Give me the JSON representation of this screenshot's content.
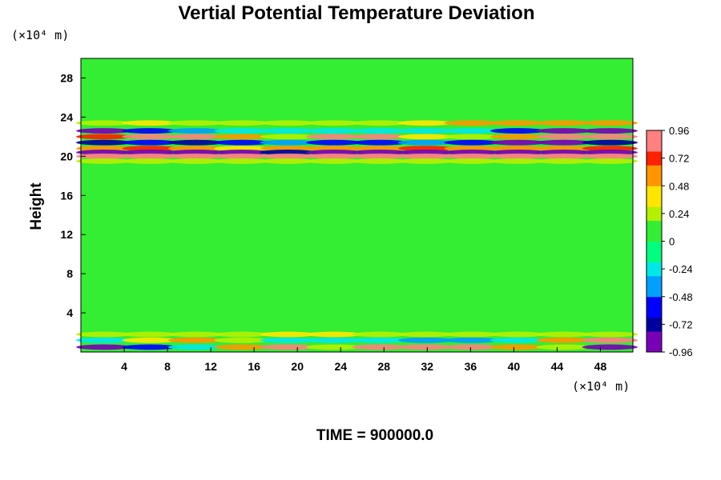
{
  "chart_data": {
    "type": "heatmap",
    "title": "Vertial Potential Temperature Deviation",
    "ylabel": "Height",
    "xlabel": "",
    "x_unit": "(×10⁴ m)",
    "y_unit": "(×10⁴ m)",
    "xlim": [
      0,
      51
    ],
    "ylim": [
      0,
      30
    ],
    "x_ticks": [
      "4",
      "8",
      "12",
      "16",
      "20",
      "24",
      "28",
      "32",
      "36",
      "40",
      "44",
      "48"
    ],
    "y_ticks": [
      "4",
      "8",
      "12",
      "16",
      "20",
      "24",
      "28"
    ],
    "grid": false,
    "background_value": 0,
    "colorbar": {
      "range": [
        -0.96,
        0.96
      ],
      "step": 0.06,
      "tick_labels": [
        "0.96",
        "0.72",
        "0.48",
        "0.24",
        "0",
        "-0.24",
        "-0.48",
        "-0.72",
        "-0.96"
      ],
      "tick_values": [
        0.96,
        0.72,
        0.48,
        0.24,
        0,
        -0.24,
        -0.48,
        -0.72,
        -0.96
      ],
      "colors": [
        "#7a00b8",
        "#0000a0",
        "#0000ff",
        "#00a0ff",
        "#00e8e8",
        "#00ff80",
        "#33ee33",
        "#b4f000",
        "#ffe600",
        "#ff9600",
        "#ff2000",
        "#ff8080"
      ]
    },
    "bands": [
      {
        "y": 23.4,
        "x_start": 0,
        "x_end": 51,
        "amplitude": [
          0.3,
          0.4,
          0.3,
          0.3,
          0.2,
          0.2,
          0.3,
          0.4,
          0.5,
          0.6,
          0.6,
          0.5
        ]
      },
      {
        "y": 22.6,
        "x_start": 0,
        "x_end": 51,
        "amplitude": [
          -0.8,
          -0.6,
          -0.4,
          -0.3,
          -0.3,
          -0.2,
          -0.2,
          -0.2,
          -0.3,
          -0.5,
          -0.8,
          -0.9
        ]
      },
      {
        "y": 22.0,
        "x_start": 0,
        "x_end": 51,
        "amplitude": [
          0.7,
          0.8,
          0.9,
          0.5,
          0.3,
          0.9,
          0.9,
          0.4,
          0.3,
          0.6,
          0.9,
          0.8
        ]
      },
      {
        "y": 21.4,
        "x_start": 0,
        "x_end": 51,
        "amplitude": [
          -0.7,
          -0.6,
          -0.7,
          -0.5,
          -0.4,
          -0.6,
          -0.5,
          -0.4,
          -0.6,
          -0.9,
          -0.9,
          -0.7
        ]
      },
      {
        "y": 20.8,
        "x_start": 0,
        "x_end": 51,
        "amplitude": [
          0.6,
          0.7,
          0.5,
          0.4,
          0.6,
          0.5,
          0.6,
          0.7,
          0.6,
          0.5,
          0.6,
          0.7
        ]
      },
      {
        "y": 20.4,
        "x_start": 0,
        "x_end": 51,
        "amplitude": [
          -0.8,
          -0.9,
          -0.9,
          -0.8,
          -0.7,
          -0.9,
          -0.9,
          -0.8,
          -0.9,
          -0.9,
          -0.8,
          -0.9
        ]
      },
      {
        "y": 20.0,
        "x_start": 0,
        "x_end": 51,
        "amplitude": [
          0.9,
          0.8,
          0.9,
          0.9,
          0.8,
          0.9,
          0.8,
          0.9,
          0.9,
          0.8,
          0.9,
          0.9
        ]
      },
      {
        "y": 19.5,
        "x_start": 0,
        "x_end": 51,
        "amplitude": [
          0.3,
          0.2,
          0.3,
          0.2,
          0.3,
          0.2,
          0.2,
          0.3,
          0.2,
          0.3,
          0.2,
          0.3
        ]
      },
      {
        "y": 1.8,
        "x_start": 0,
        "x_end": 51,
        "amplitude": [
          0.3,
          0.2,
          0.2,
          0.3,
          0.4,
          0.4,
          0.3,
          0.2,
          0.2,
          0.2,
          0.2,
          0.2
        ]
      },
      {
        "y": 1.2,
        "x_start": 0,
        "x_end": 51,
        "amplitude": [
          -0.3,
          0.4,
          0.6,
          0.3,
          -0.2,
          -0.3,
          -0.3,
          -0.4,
          -0.4,
          -0.3,
          0.5,
          0.8
        ]
      },
      {
        "y": 0.5,
        "x_start": 0,
        "x_end": 51,
        "amplitude": [
          -0.9,
          -0.6,
          -0.2,
          0.6,
          0.9,
          0.3,
          0.9,
          0.9,
          0.8,
          0.6,
          0.2,
          -0.8
        ]
      }
    ]
  },
  "footer": "TIME = 900000.0"
}
